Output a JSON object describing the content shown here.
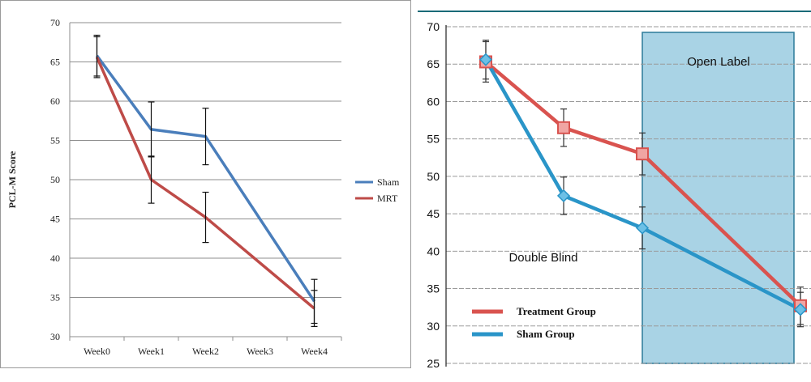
{
  "chart_data": [
    {
      "type": "line",
      "title": "",
      "xlabel": "",
      "ylabel": "PCL-M Score",
      "categories": [
        "Week0",
        "Week1",
        "Week2",
        "Week3",
        "Week4"
      ],
      "y_ticks": [
        "30",
        "35",
        "40",
        "45",
        "50",
        "55",
        "60",
        "65",
        "70"
      ],
      "ylim": [
        30,
        70
      ],
      "grid": "horizontal",
      "legend_placement": "right",
      "series": [
        {
          "name": "Sham",
          "color": "#4a7ebb",
          "points": [
            {
              "x": "Week0",
              "y": 65.8,
              "err": 2.6
            },
            {
              "x": "Week1",
              "y": 56.4,
              "err": 3.5
            },
            {
              "x": "Week2",
              "y": 55.5,
              "err": 3.6
            },
            {
              "x": "Week4",
              "y": 34.5,
              "err": 2.8
            }
          ]
        },
        {
          "name": "MRT",
          "color": "#be4b48",
          "points": [
            {
              "x": "Week0",
              "y": 65.6,
              "err": 2.6
            },
            {
              "x": "Week1",
              "y": 50.0,
              "err": 3.0
            },
            {
              "x": "Week2",
              "y": 45.2,
              "err": 3.2
            },
            {
              "x": "Week4",
              "y": 33.6,
              "err": 2.3
            }
          ]
        }
      ]
    },
    {
      "type": "line",
      "title": "",
      "xlabel": "",
      "ylabel": "",
      "x": [
        0,
        1,
        2,
        4
      ],
      "y_ticks": [
        "25",
        "30",
        "35",
        "40",
        "45",
        "50",
        "55",
        "60",
        "65",
        "70"
      ],
      "ylim": [
        25,
        70
      ],
      "grid": "horizontal",
      "legend_placement": "bottom-left",
      "annotations": [
        "Open Label",
        "Double Blind"
      ],
      "shaded_region": {
        "label": "Open Label",
        "x_from": 2,
        "x_to": 4
      },
      "series": [
        {
          "name": "Treatment Group",
          "color": "#d9534f",
          "marker": "square",
          "points": [
            {
              "x": 0,
              "y": 65.3,
              "err": 2.7
            },
            {
              "x": 1,
              "y": 56.5,
              "err": 2.5
            },
            {
              "x": 2,
              "y": 53.0,
              "err": 2.8
            },
            {
              "x": 4,
              "y": 32.7,
              "err": 2.5
            }
          ]
        },
        {
          "name": "Sham Group",
          "color": "#2a95c8",
          "marker": "diamond",
          "points": [
            {
              "x": 0,
              "y": 65.6,
              "err": 2.6
            },
            {
              "x": 1,
              "y": 47.4,
              "err": 2.5
            },
            {
              "x": 2,
              "y": 43.1,
              "err": 2.8
            },
            {
              "x": 4,
              "y": 32.2,
              "err": 2.3
            }
          ]
        }
      ]
    }
  ]
}
